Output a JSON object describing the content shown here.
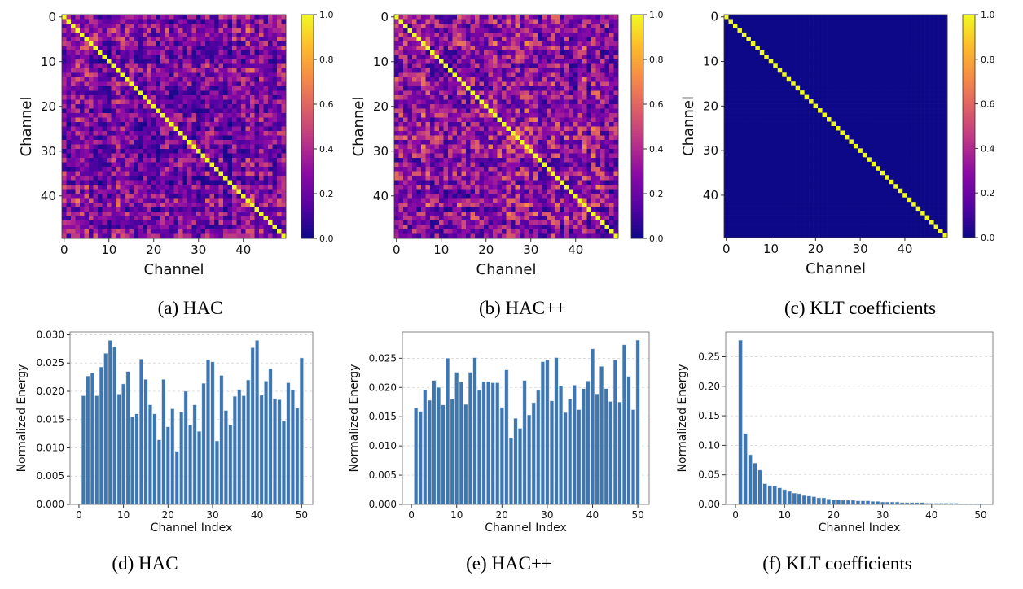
{
  "colors": {
    "bar": "#3d76b0",
    "grid": "#d0d0d0",
    "colormap": "plasma"
  },
  "chart_data": [
    {
      "type": "heatmap",
      "caption": "(a) HAC",
      "xlabel": "Channel",
      "ylabel": "Channel",
      "size": 50,
      "xticks": [
        0,
        10,
        20,
        30,
        40
      ],
      "yticks": [
        0,
        10,
        20,
        30,
        40
      ],
      "colorbar_ticks": [
        "0.0",
        "0.2",
        "0.4",
        "0.6",
        "0.8",
        "1.0"
      ],
      "vmin": 0,
      "vmax": 1,
      "diagonal_value": 1.0,
      "offdiagonal_range": [
        0.0,
        0.7
      ]
    },
    {
      "type": "heatmap",
      "caption": "(b) HAC++",
      "xlabel": "Channel",
      "ylabel": "Channel",
      "size": 50,
      "xticks": [
        0,
        10,
        20,
        30,
        40
      ],
      "yticks": [
        0,
        10,
        20,
        30,
        40
      ],
      "colorbar_ticks": [
        "0.0",
        "0.2",
        "0.4",
        "0.6",
        "0.8",
        "1.0"
      ],
      "vmin": 0,
      "vmax": 1,
      "diagonal_value": 1.0,
      "offdiagonal_range": [
        0.0,
        0.8
      ]
    },
    {
      "type": "heatmap",
      "caption": "(c) KLT coefficients",
      "xlabel": "Channel",
      "ylabel": "Channel",
      "size": 50,
      "xticks": [
        0,
        10,
        20,
        30,
        40
      ],
      "yticks": [
        0,
        10,
        20,
        30,
        40
      ],
      "colorbar_ticks": [
        "0.0",
        "0.2",
        "0.4",
        "0.6",
        "0.8",
        "1.0"
      ],
      "vmin": 0,
      "vmax": 1,
      "diagonal_value": 1.0,
      "offdiagonal_range": [
        0.0,
        0.0
      ]
    },
    {
      "type": "bar",
      "caption": "(d) HAC",
      "xlabel": "Channel Index",
      "ylabel": "Normalized Energy",
      "ylim": [
        0,
        0.0305
      ],
      "xlim": [
        -2,
        52.5
      ],
      "xticks": [
        "0",
        "10",
        "20",
        "30",
        "40",
        "50"
      ],
      "yticks": [
        "0.000",
        "0.005",
        "0.010",
        "0.015",
        "0.020",
        "0.025",
        "0.030"
      ],
      "ytick_values": [
        0,
        0.005,
        0.01,
        0.015,
        0.02,
        0.025,
        0.03
      ],
      "values": [
        0.0192,
        0.0227,
        0.0232,
        0.0192,
        0.0243,
        0.0267,
        0.029,
        0.0279,
        0.0195,
        0.0213,
        0.0235,
        0.0155,
        0.016,
        0.0257,
        0.0221,
        0.0176,
        0.016,
        0.0114,
        0.0221,
        0.0137,
        0.0169,
        0.0094,
        0.0163,
        0.02,
        0.014,
        0.0176,
        0.0129,
        0.0214,
        0.0256,
        0.0252,
        0.0112,
        0.0228,
        0.0166,
        0.014,
        0.0191,
        0.0203,
        0.0192,
        0.022,
        0.0277,
        0.029,
        0.0193,
        0.0218,
        0.024,
        0.0187,
        0.0185,
        0.0147,
        0.0215,
        0.0202,
        0.017,
        0.0259
      ]
    },
    {
      "type": "bar",
      "caption": "(e) HAC++",
      "xlabel": "Channel Index",
      "ylabel": "Normalized Energy",
      "ylim": [
        0,
        0.0295
      ],
      "xlim": [
        -2,
        52.5
      ],
      "xticks": [
        "0",
        "10",
        "20",
        "30",
        "40",
        "50"
      ],
      "yticks": [
        "0.000",
        "0.005",
        "0.010",
        "0.015",
        "0.020",
        "0.025"
      ],
      "ytick_values": [
        0,
        0.005,
        0.01,
        0.015,
        0.02,
        0.025
      ],
      "values": [
        0.0165,
        0.0159,
        0.0196,
        0.0178,
        0.0212,
        0.02,
        0.017,
        0.025,
        0.018,
        0.0226,
        0.0209,
        0.0171,
        0.0226,
        0.0251,
        0.0195,
        0.021,
        0.021,
        0.0208,
        0.0208,
        0.0166,
        0.023,
        0.0114,
        0.0147,
        0.013,
        0.0212,
        0.0153,
        0.0174,
        0.0195,
        0.0244,
        0.0247,
        0.0177,
        0.0251,
        0.0203,
        0.0157,
        0.018,
        0.0204,
        0.0162,
        0.0198,
        0.0211,
        0.0266,
        0.0189,
        0.0236,
        0.0198,
        0.0176,
        0.0247,
        0.0175,
        0.0273,
        0.0219,
        0.0162,
        0.0281
      ]
    },
    {
      "type": "bar",
      "caption": "(f) KLT coefficients",
      "xlabel": "Channel Index",
      "ylabel": "Normalized Energy",
      "ylim": [
        0,
        0.292
      ],
      "xlim": [
        -2,
        52.5
      ],
      "xticks": [
        "0",
        "10",
        "20",
        "30",
        "40",
        "50"
      ],
      "yticks": [
        "0.00",
        "0.05",
        "0.10",
        "0.15",
        "0.20",
        "0.25"
      ],
      "ytick_values": [
        0,
        0.05,
        0.1,
        0.15,
        0.2,
        0.25
      ],
      "values": [
        0.278,
        0.12,
        0.084,
        0.07,
        0.058,
        0.035,
        0.032,
        0.031,
        0.028,
        0.025,
        0.022,
        0.019,
        0.018,
        0.015,
        0.014,
        0.013,
        0.011,
        0.011,
        0.009,
        0.008,
        0.008,
        0.007,
        0.007,
        0.007,
        0.006,
        0.006,
        0.006,
        0.005,
        0.005,
        0.004,
        0.004,
        0.004,
        0.004,
        0.003,
        0.003,
        0.003,
        0.003,
        0.003,
        0.002,
        0.002,
        0.002,
        0.002,
        0.002,
        0.002,
        0.002,
        0.001,
        0.001,
        0.001,
        0.001,
        0.001
      ]
    }
  ]
}
